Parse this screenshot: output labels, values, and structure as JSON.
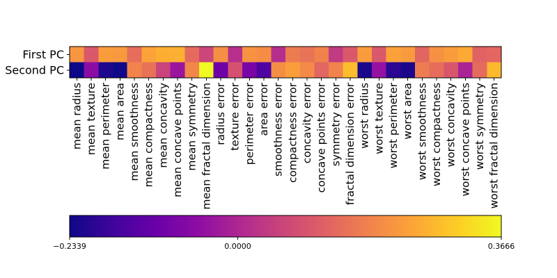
{
  "chart_data": {
    "type": "heatmap",
    "title": "",
    "colormap": "plasma",
    "rows": [
      "First PC",
      "Second PC"
    ],
    "columns": [
      "mean radius",
      "mean texture",
      "mean perimeter",
      "mean area",
      "mean smoothness",
      "mean compactness",
      "mean concavity",
      "mean concave points",
      "mean symmetry",
      "mean fractal dimension",
      "radius error",
      "texture error",
      "perimeter error",
      "area error",
      "smoothness error",
      "compactness error",
      "concavity error",
      "concave points error",
      "symmetry error",
      "fractal dimension error",
      "worst radius",
      "worst texture",
      "worst perimeter",
      "worst area",
      "worst smoothness",
      "worst compactness",
      "worst concavity",
      "worst concave points",
      "worst symmetry",
      "worst fractal dimension"
    ],
    "values": [
      [
        0.219,
        0.104,
        0.228,
        0.221,
        0.143,
        0.239,
        0.258,
        0.261,
        0.138,
        0.064,
        0.206,
        0.017,
        0.211,
        0.203,
        0.015,
        0.17,
        0.154,
        0.183,
        0.042,
        0.103,
        0.228,
        0.104,
        0.237,
        0.225,
        0.128,
        0.21,
        0.229,
        0.251,
        0.123,
        0.132
      ],
      [
        -0.234,
        -0.06,
        -0.215,
        -0.231,
        0.186,
        0.152,
        0.06,
        -0.035,
        0.19,
        0.367,
        -0.106,
        0.09,
        -0.089,
        -0.152,
        0.204,
        0.233,
        0.197,
        0.13,
        0.184,
        0.28,
        -0.22,
        -0.045,
        -0.2,
        -0.219,
        0.172,
        0.144,
        0.098,
        -0.008,
        0.142,
        0.275
      ]
    ],
    "vmin": -0.2339,
    "vmax": 0.3666,
    "colorbar": {
      "orientation": "horizontal",
      "tick_labels": [
        "−0.2339",
        "0.0000",
        "0.3666"
      ],
      "tick_values": [
        -0.2339,
        0.0,
        0.3666
      ]
    }
  }
}
